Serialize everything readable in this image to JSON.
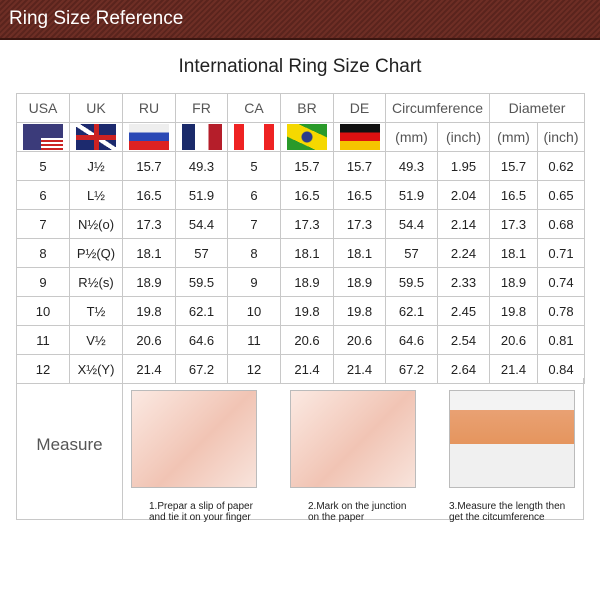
{
  "banner": "Ring Size Reference",
  "title": "International Ring Size Chart",
  "headers": [
    "USA",
    "UK",
    "RU",
    "FR",
    "CA",
    "BR",
    "DE",
    "Circumference",
    "Diameter"
  ],
  "units": [
    "(mm)",
    "(inch)",
    "(mm)",
    "(inch)"
  ],
  "flags": [
    "us-flag",
    "uk-flag",
    "russia-flag",
    "france-flag",
    "canada-flag",
    "brazil-flag",
    "germany-flag"
  ],
  "rows": [
    [
      "5",
      "J½",
      "15.7",
      "49.3",
      "5",
      "15.7",
      "15.7",
      "49.3",
      "1.95",
      "15.7",
      "0.62"
    ],
    [
      "6",
      "L½",
      "16.5",
      "51.9",
      "6",
      "16.5",
      "16.5",
      "51.9",
      "2.04",
      "16.5",
      "0.65"
    ],
    [
      "7",
      "N½(o)",
      "17.3",
      "54.4",
      "7",
      "17.3",
      "17.3",
      "54.4",
      "2.14",
      "17.3",
      "0.68"
    ],
    [
      "8",
      "P½(Q)",
      "18.1",
      "57",
      "8",
      "18.1",
      "18.1",
      "57",
      "2.24",
      "18.1",
      "0.71"
    ],
    [
      "9",
      "R½(s)",
      "18.9",
      "59.5",
      "9",
      "18.9",
      "18.9",
      "59.5",
      "2.33",
      "18.9",
      "0.74"
    ],
    [
      "10",
      "T½",
      "19.8",
      "62.1",
      "10",
      "19.8",
      "19.8",
      "62.1",
      "2.45",
      "19.8",
      "0.78"
    ],
    [
      "11",
      "V½",
      "20.6",
      "64.6",
      "11",
      "20.6",
      "20.6",
      "64.6",
      "2.54",
      "20.6",
      "0.81"
    ],
    [
      "12",
      "X½(Y)",
      "21.4",
      "67.2",
      "12",
      "21.4",
      "21.4",
      "67.2",
      "2.64",
      "21.4",
      "0.84"
    ]
  ],
  "measure": {
    "label": "Measure",
    "steps": [
      {
        "l1": "1.Prepar a slip of paper",
        "l2": "and tie it on your finger"
      },
      {
        "l1": "2.Mark on the junction",
        "l2": "on the paper"
      },
      {
        "l1": "3.Measure the length then",
        "l2": "get the citcumference"
      }
    ]
  }
}
